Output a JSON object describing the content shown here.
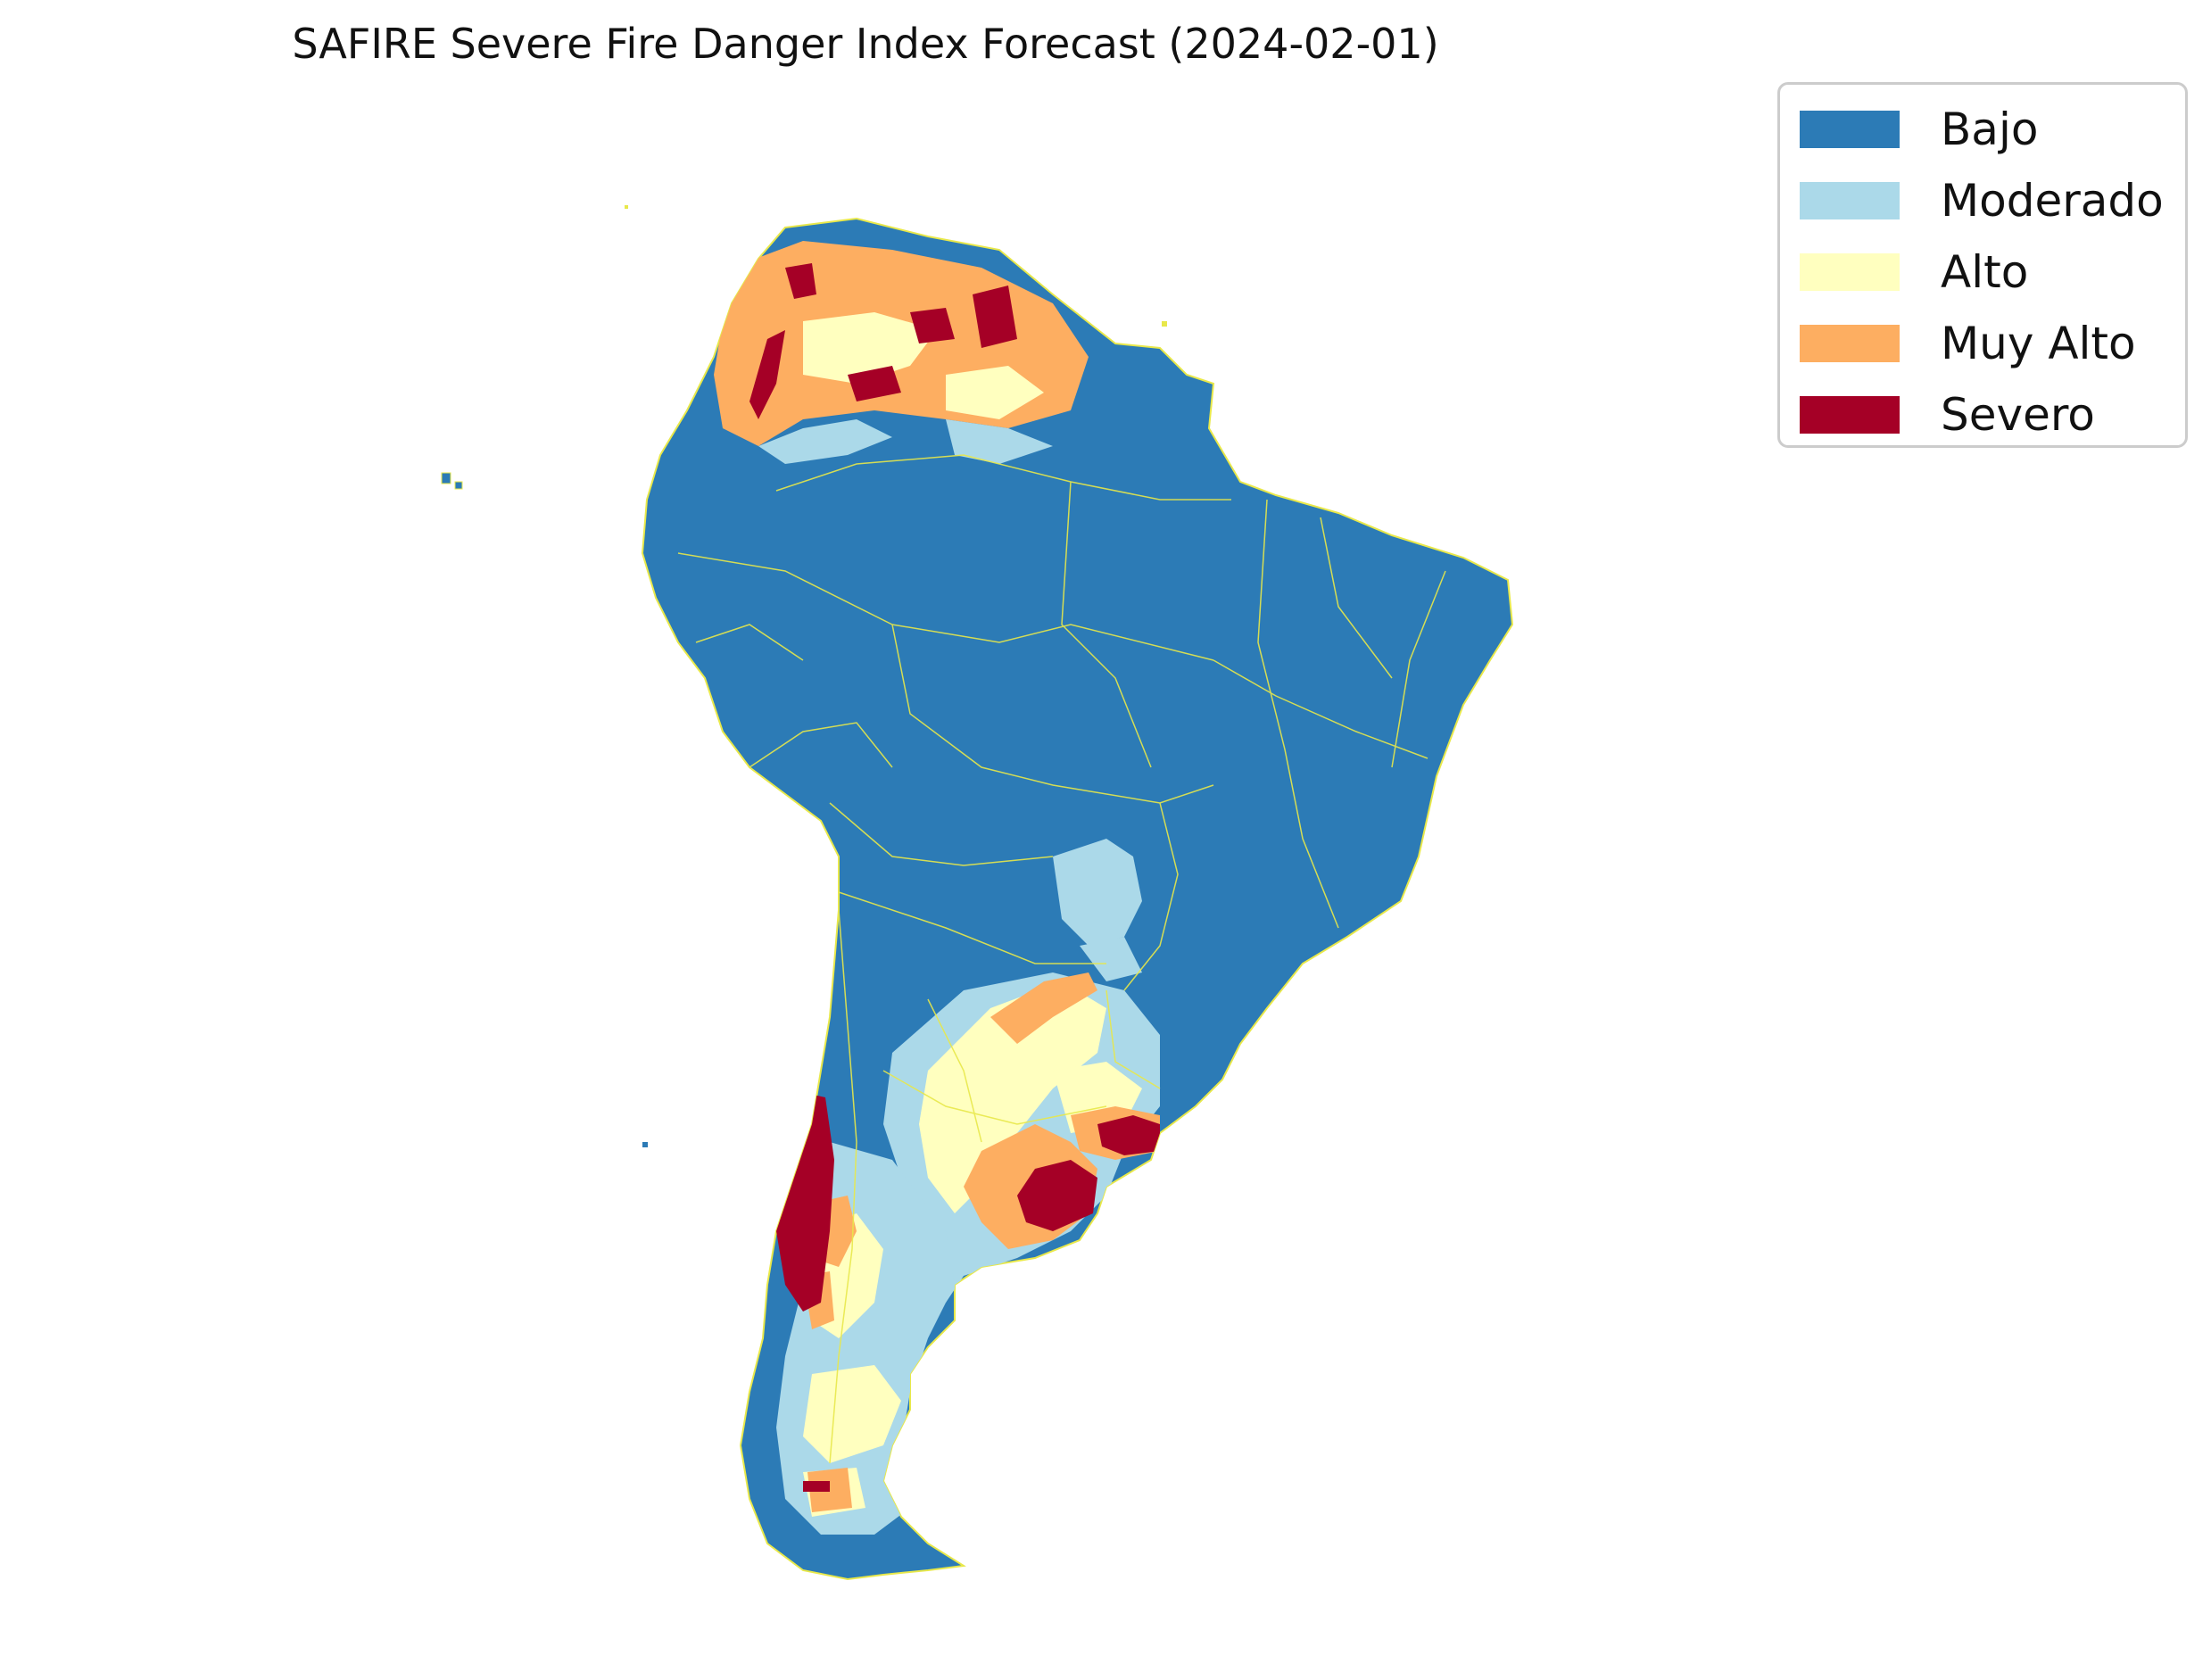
{
  "title": "SAFIRE Severe Fire Danger Index Forecast (2024-02-01)",
  "legend": {
    "items": [
      {
        "label": "Bajo",
        "color": "#2c7bb6"
      },
      {
        "label": "Moderado",
        "color": "#abd9e9"
      },
      {
        "label": "Alto",
        "color": "#ffffbf"
      },
      {
        "label": "Muy Alto",
        "color": "#fdae61"
      },
      {
        "label": "Severo",
        "color": "#a50026"
      }
    ]
  },
  "map": {
    "region": "South America",
    "base_category": "Bajo",
    "border_color": "#e8e84a"
  }
}
